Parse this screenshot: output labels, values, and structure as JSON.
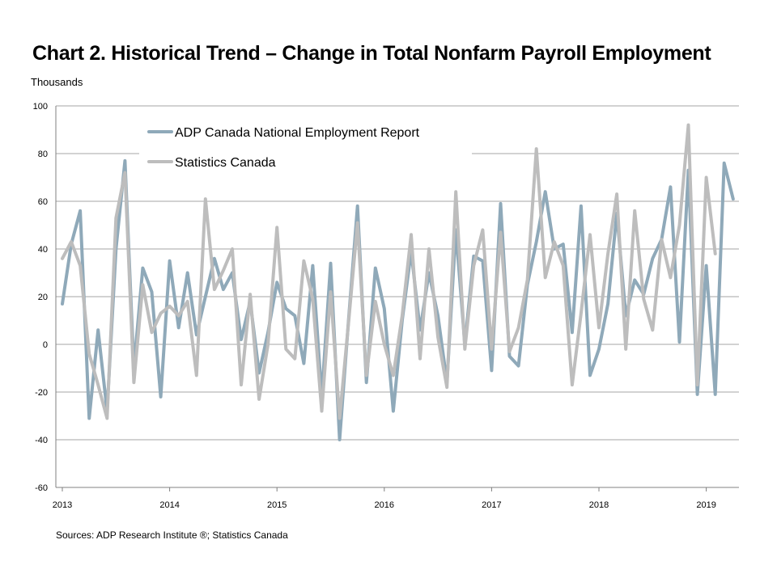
{
  "title": "Chart 2. Historical Trend – Change in Total Nonfarm Payroll Employment",
  "unit_label": "Thousands",
  "source": "Sources: ADP Research Institute ®; Statistics Canada",
  "colors": {
    "adp": "#8fa9b9",
    "statcan": "#bdbdbd",
    "grid": "#a6a6a6"
  },
  "chart_data": {
    "type": "line",
    "title": "Chart 2. Historical Trend – Change in Total Nonfarm Payroll Employment",
    "ylabel": "Thousands",
    "xlabel": "",
    "ylim": [
      -60,
      100
    ],
    "yticks": [
      100,
      80,
      60,
      40,
      20,
      0,
      -20,
      -40,
      -60
    ],
    "xticks": [
      "2013",
      "2014",
      "2015",
      "2016",
      "2017",
      "2018",
      "2019"
    ],
    "x_start": "2013-01",
    "legend_position": "top-left",
    "grid": "horizontal",
    "series": [
      {
        "name": "ADP Canada National Employment Report",
        "color": "#8fa9b9",
        "values": [
          17,
          42,
          56,
          -31,
          6,
          -28,
          40,
          77,
          -10,
          32,
          22,
          -22,
          35,
          7,
          30,
          4,
          20,
          36,
          23,
          30,
          2,
          18,
          -12,
          5,
          26,
          15,
          12,
          -8,
          33,
          -22,
          34,
          -40,
          10,
          58,
          -16,
          32,
          15,
          -28,
          10,
          39,
          6,
          30,
          12,
          -16,
          48,
          0,
          37,
          35,
          -11,
          59,
          -5,
          -9,
          25,
          43,
          64,
          40,
          42,
          5,
          58,
          -13,
          -2,
          17,
          55,
          12,
          27,
          21,
          36,
          44,
          66,
          1,
          73,
          -21,
          33,
          -21,
          76,
          61
        ]
      },
      {
        "name": "Statistics Canada",
        "color": "#bdbdbd",
        "values": [
          36,
          43,
          33,
          -4,
          -17,
          -31,
          53,
          72,
          -16,
          25,
          5,
          13,
          16,
          12,
          18,
          -13,
          61,
          23,
          31,
          40,
          -17,
          21,
          -23,
          0,
          49,
          -2,
          -6,
          35,
          19,
          -28,
          22,
          -31,
          9,
          51,
          -13,
          18,
          0,
          -13,
          12,
          46,
          -6,
          40,
          3,
          -18,
          64,
          -2,
          33,
          48,
          -2,
          47,
          -3,
          7,
          27,
          82,
          28,
          43,
          33,
          -17,
          13,
          46,
          7,
          38,
          63,
          -2,
          56,
          19,
          6,
          44,
          28,
          50,
          92,
          -17,
          70,
          38
        ]
      }
    ]
  }
}
